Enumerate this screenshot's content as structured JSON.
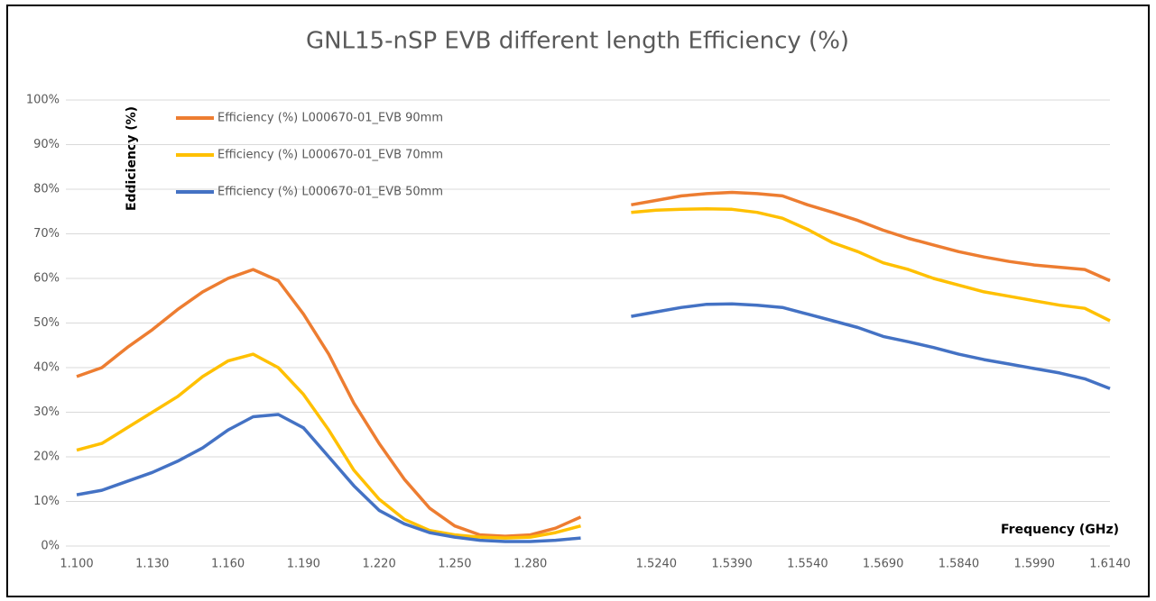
{
  "chart_data": {
    "type": "line",
    "title": "GNL15-nSP EVB different length Efficiency (%)",
    "x_label": "Frequency (GHz)",
    "y_label": "Eddiciency (%)",
    "categories": [
      "1.100",
      null,
      null,
      "1.130",
      null,
      null,
      "1.160",
      null,
      null,
      "1.190",
      null,
      null,
      "1.220",
      null,
      null,
      "1.250",
      null,
      null,
      "1.280",
      null,
      null,
      null,
      null,
      "1.5240",
      null,
      null,
      "1.5390",
      null,
      null,
      "1.5540",
      null,
      null,
      "1.5690",
      null,
      null,
      "1.5840",
      null,
      null,
      "1.5990",
      null,
      null,
      "1.6140"
    ],
    "series": [
      {
        "name": "Efficiency (%) L000670-01_EVB 90mm",
        "color": "#ed7d31",
        "values": [
          38,
          40,
          44.5,
          48.5,
          53,
          57,
          60,
          62,
          59.5,
          52,
          43,
          32,
          23,
          15,
          8.5,
          4.5,
          2.5,
          2.2,
          2.5,
          4,
          6.5,
          null,
          76.5,
          77.5,
          78.5,
          79,
          79.3,
          79,
          78.5,
          76.5,
          74.8,
          73,
          70.8,
          69,
          67.5,
          66,
          64.8,
          63.8,
          63,
          62.5,
          62,
          59.5
        ]
      },
      {
        "name": "Efficiency (%) L000670-01_EVB 70mm",
        "color": "#ffc000",
        "values": [
          21.5,
          23,
          26.5,
          30,
          33.5,
          38,
          41.5,
          43,
          40,
          34,
          26,
          17,
          10.5,
          6,
          3.5,
          2.5,
          2,
          1.8,
          2,
          3,
          4.5,
          null,
          74.8,
          75.3,
          75.5,
          75.6,
          75.5,
          74.8,
          73.5,
          71,
          68,
          66,
          63.5,
          62,
          60,
          58.5,
          57,
          56,
          55,
          54,
          53.3,
          50.5
        ]
      },
      {
        "name": "Efficiency (%) L000670-01_EVB 50mm",
        "color": "#4472c4",
        "values": [
          11.5,
          12.5,
          14.5,
          16.5,
          19,
          22,
          26,
          29,
          29.5,
          26.5,
          20,
          13.5,
          8,
          5,
          3,
          2,
          1.3,
          1,
          1,
          1.3,
          1.8,
          null,
          51.5,
          52.5,
          53.5,
          54.2,
          54.3,
          54,
          53.5,
          52,
          50.5,
          49,
          47,
          45.8,
          44.5,
          43,
          41.8,
          40.8,
          39.8,
          38.8,
          37.5,
          35.3
        ]
      }
    ],
    "ylim": [
      0,
      100
    ],
    "yticks": [
      {
        "value": 0,
        "label": "0%"
      },
      {
        "value": 10,
        "label": "10%"
      },
      {
        "value": 20,
        "label": "20%"
      },
      {
        "value": 30,
        "label": "30%"
      },
      {
        "value": 40,
        "label": "40%"
      },
      {
        "value": 50,
        "label": "50%"
      },
      {
        "value": 60,
        "label": "60%"
      },
      {
        "value": 70,
        "label": "70%"
      },
      {
        "value": 80,
        "label": "80%"
      },
      {
        "value": 90,
        "label": "90%"
      },
      {
        "value": 100,
        "label": "100%"
      }
    ],
    "grid": true
  }
}
